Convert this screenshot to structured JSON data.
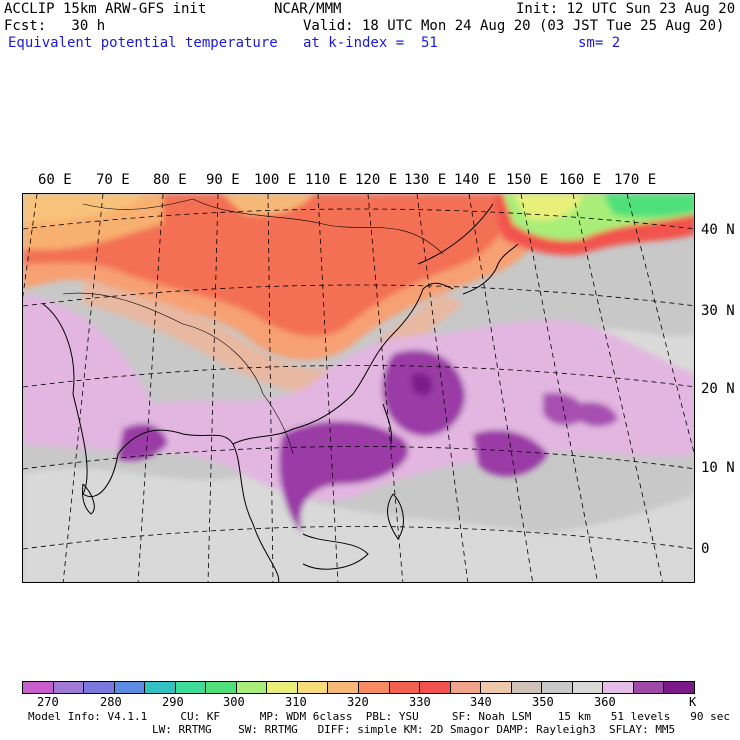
{
  "header": {
    "model": "ACCLIP 15km ARW-GFS init",
    "org": "NCAR/MMM",
    "init": "Init: 12 UTC Sun 23 Aug 20",
    "fcst": "Fcst:   30 h",
    "valid": "Valid: 18 UTC Mon 24 Aug 20 (03 JST Tue 25 Aug 20)",
    "field": "Equivalent potential temperature",
    "level": "at k-index =  51",
    "smooth": "sm= 2"
  },
  "lon_labels": [
    "60 E",
    "70 E",
    "80 E",
    "90 E",
    "100 E",
    "110 E",
    "120 E",
    "130 E",
    "140 E",
    "150 E",
    "160 E",
    "170 E"
  ],
  "lat_labels": [
    "40 N",
    "30 N",
    "20 N",
    "10 N",
    "0"
  ],
  "colorbar": {
    "colors": [
      "#c95fcf",
      "#a07ad6",
      "#7b78e0",
      "#5a8de3",
      "#33c2c4",
      "#3fdc9c",
      "#4fe07a",
      "#a9ee78",
      "#e8f07a",
      "#f9dc7a",
      "#f6b877",
      "#f88b63",
      "#f5614f",
      "#f2524e",
      "#f2a48a",
      "#efc8aa",
      "#cfc0b8",
      "#c8c8c8",
      "#d9d9d9",
      "#e6bde6",
      "#a04aa8",
      "#7b1a88"
    ],
    "labels": [
      "270",
      "280",
      "290",
      "300",
      "310",
      "320",
      "330",
      "340",
      "350",
      "360"
    ],
    "unit": "K"
  },
  "footer": {
    "line1": "Model Info: V4.1.1     CU: KF      MP: WDM 6class  PBL: YSU     SF: Noah LSM    15 km   51 levels   90 sec",
    "line2": "LW: RRTMG    SW: RRTMG   DIFF: simple KM: 2D Smagor DAMP: Rayleigh3  SFLAY: MM5"
  }
}
